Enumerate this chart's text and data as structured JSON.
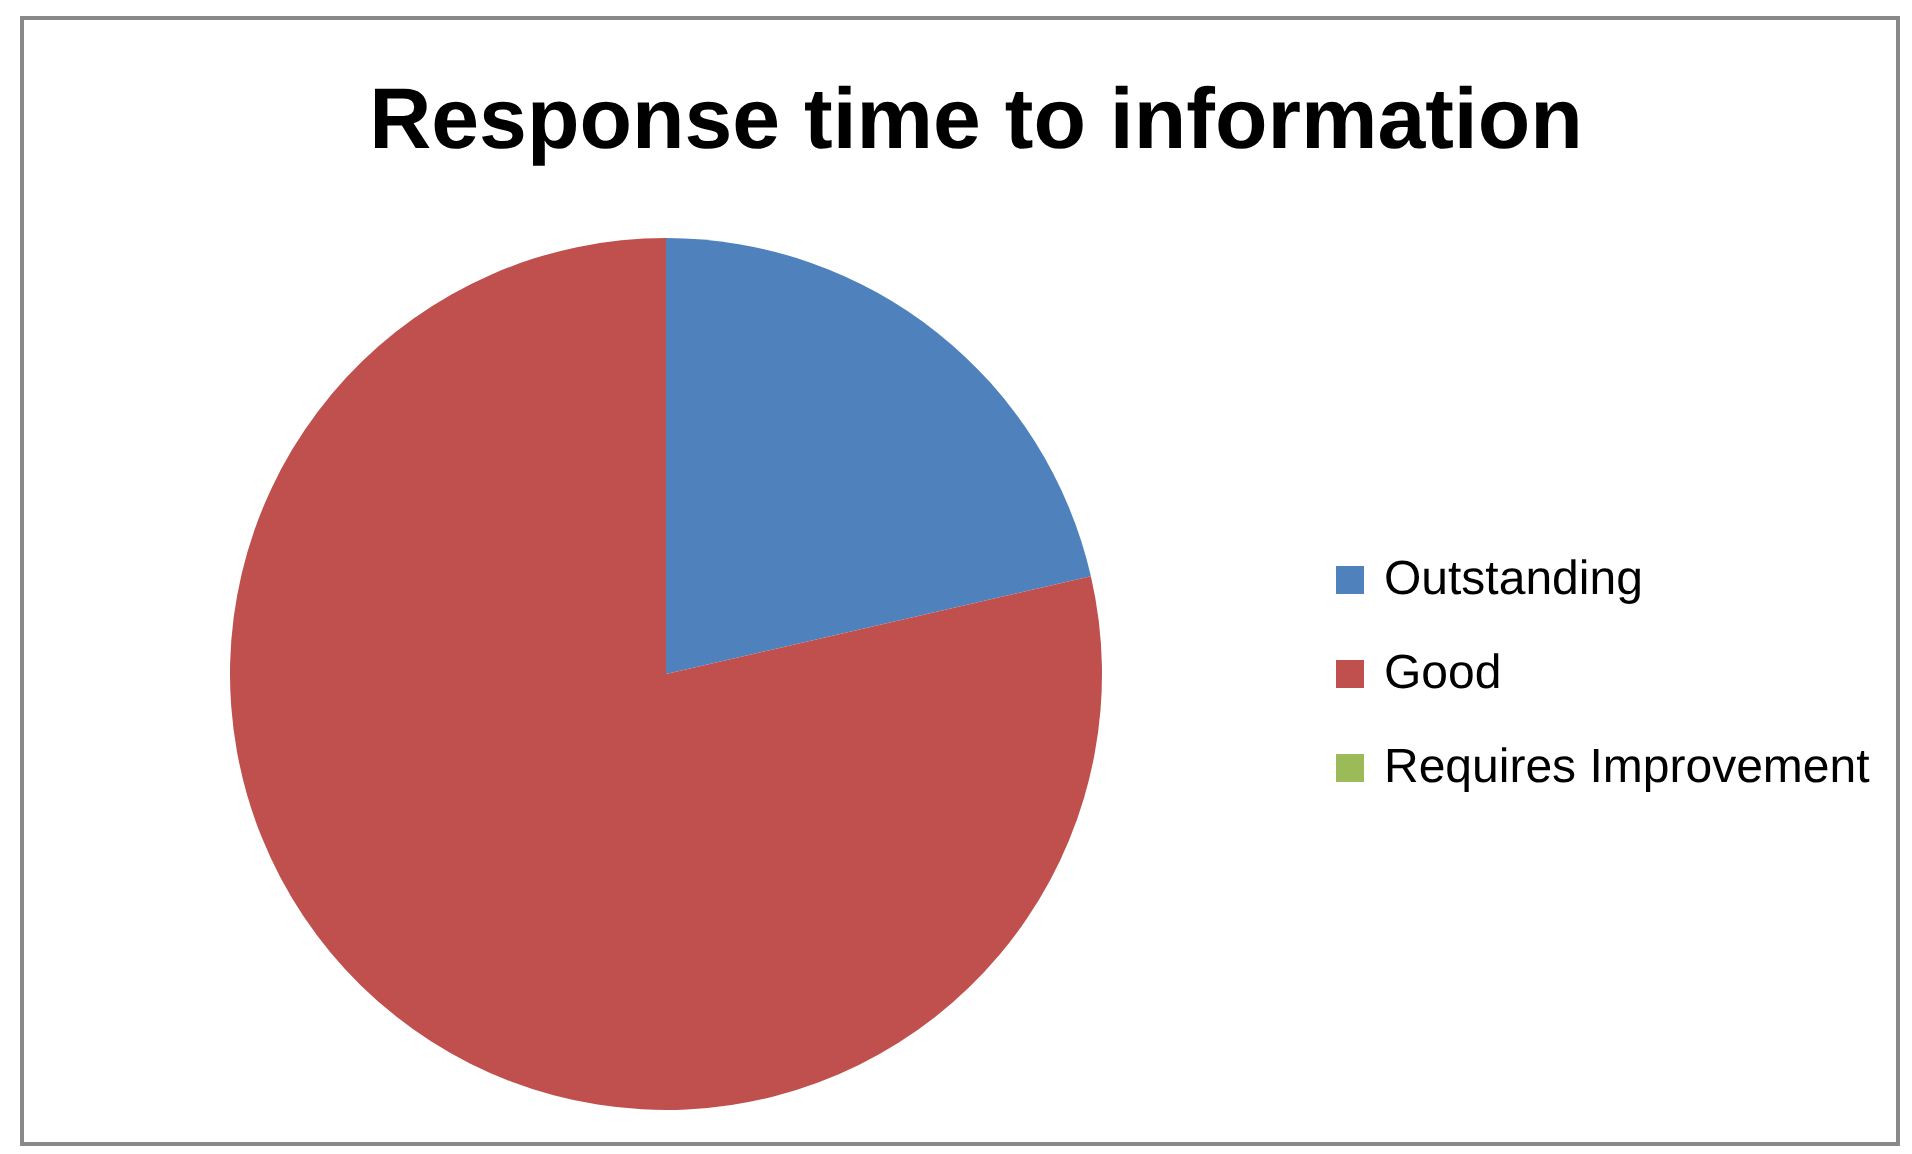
{
  "chart_data": {
    "type": "pie",
    "title": "Response time to information",
    "categories": [
      "Outstanding",
      "Good",
      "Requires Improvement"
    ],
    "values": [
      21.4,
      78.6,
      0
    ],
    "colors": [
      "#4f81bd",
      "#c0504d",
      "#9bbb59"
    ],
    "legend": "right"
  }
}
